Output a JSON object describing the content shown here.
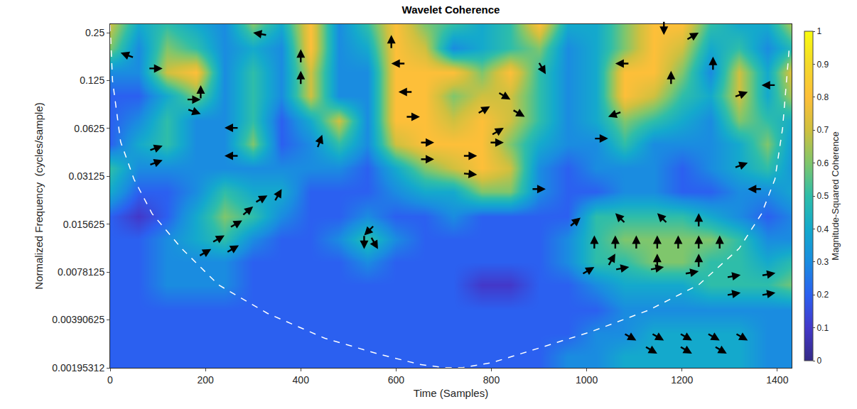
{
  "chart_data": {
    "type": "heatmap",
    "title": "Wavelet Coherence",
    "x_label": "Time (Samples)",
    "y_label": "Normalized Frequency  (cycles/sample)",
    "log": "y",
    "xlim": [
      0,
      1430
    ],
    "xticks": [
      0,
      200,
      400,
      600,
      800,
      1000,
      1200,
      1400
    ],
    "ylim": [
      0.00195312,
      0.283
    ],
    "yticks": [
      0.00195312,
      0.00390625,
      0.0078125,
      0.015625,
      0.03125,
      0.0625,
      0.125,
      0.25
    ],
    "x": [
      0,
      60,
      120,
      180,
      240,
      300,
      360,
      420,
      480,
      540,
      600,
      660,
      720,
      780,
      840,
      900,
      960,
      1020,
      1080,
      1140,
      1200,
      1260,
      1320,
      1380,
      1440
    ],
    "y": [
      0.0023,
      0.0032,
      0.0045,
      0.0065,
      0.009,
      0.0125,
      0.0175,
      0.025,
      0.035,
      0.05,
      0.07,
      0.1,
      0.14,
      0.2,
      0.28
    ],
    "z": [
      [
        0.2,
        0.2,
        0.2,
        0.2,
        0.2,
        0.2,
        0.2,
        0.2,
        0.2,
        0.2,
        0.2,
        0.2,
        0.2,
        0.2,
        0.2,
        0.2,
        0.3,
        0.3,
        0.4,
        0.4,
        0.4,
        0.4,
        0.4,
        0.3,
        0.3
      ],
      [
        0.2,
        0.2,
        0.2,
        0.2,
        0.2,
        0.2,
        0.2,
        0.2,
        0.2,
        0.2,
        0.2,
        0.2,
        0.2,
        0.2,
        0.2,
        0.2,
        0.2,
        0.3,
        0.3,
        0.4,
        0.4,
        0.4,
        0.4,
        0.3,
        0.3
      ],
      [
        0.2,
        0.2,
        0.2,
        0.2,
        0.2,
        0.2,
        0.2,
        0.2,
        0.2,
        0.2,
        0.2,
        0.2,
        0.2,
        0.2,
        0.2,
        0.2,
        0.2,
        0.2,
        0.3,
        0.3,
        0.3,
        0.3,
        0.3,
        0.3,
        0.3
      ],
      [
        0.2,
        0.2,
        0.3,
        0.3,
        0.3,
        0.2,
        0.2,
        0.2,
        0.2,
        0.2,
        0.2,
        0.2,
        0.2,
        0.1,
        0.1,
        0.2,
        0.2,
        0.3,
        0.4,
        0.4,
        0.4,
        0.5,
        0.5,
        0.5,
        0.6
      ],
      [
        0.2,
        0.2,
        0.3,
        0.3,
        0.3,
        0.2,
        0.2,
        0.2,
        0.2,
        0.3,
        0.2,
        0.2,
        0.2,
        0.2,
        0.2,
        0.2,
        0.3,
        0.5,
        0.5,
        0.6,
        0.6,
        0.5,
        0.5,
        0.4,
        0.5
      ],
      [
        0.2,
        0.2,
        0.3,
        0.4,
        0.5,
        0.3,
        0.2,
        0.2,
        0.3,
        0.5,
        0.3,
        0.2,
        0.2,
        0.2,
        0.2,
        0.2,
        0.3,
        0.5,
        0.6,
        0.6,
        0.6,
        0.6,
        0.5,
        0.3,
        0.3
      ],
      [
        0.2,
        0.1,
        0.2,
        0.4,
        0.6,
        0.5,
        0.3,
        0.2,
        0.2,
        0.3,
        0.2,
        0.2,
        0.3,
        0.2,
        0.2,
        0.2,
        0.2,
        0.5,
        0.5,
        0.5,
        0.5,
        0.4,
        0.3,
        0.2,
        0.3
      ],
      [
        0.4,
        0.2,
        0.2,
        0.3,
        0.5,
        0.4,
        0.4,
        0.2,
        0.2,
        0.2,
        0.3,
        0.4,
        0.4,
        0.6,
        0.6,
        0.3,
        0.2,
        0.2,
        0.3,
        0.3,
        0.2,
        0.2,
        0.3,
        0.3,
        0.4
      ],
      [
        0.5,
        0.3,
        0.3,
        0.3,
        0.3,
        0.3,
        0.3,
        0.3,
        0.3,
        0.2,
        0.4,
        0.6,
        0.7,
        0.8,
        0.7,
        0.3,
        0.2,
        0.3,
        0.3,
        0.3,
        0.2,
        0.3,
        0.4,
        0.5,
        0.3
      ],
      [
        0.2,
        0.4,
        0.5,
        0.3,
        0.3,
        0.6,
        0.2,
        0.3,
        0.5,
        0.3,
        0.7,
        0.8,
        0.8,
        0.8,
        0.6,
        0.4,
        0.3,
        0.3,
        0.5,
        0.3,
        0.3,
        0.3,
        0.4,
        0.6,
        0.3
      ],
      [
        0.2,
        0.3,
        0.5,
        0.3,
        0.3,
        0.5,
        0.2,
        0.4,
        0.7,
        0.3,
        0.8,
        0.8,
        0.7,
        0.8,
        0.7,
        0.5,
        0.3,
        0.4,
        0.6,
        0.5,
        0.4,
        0.3,
        0.6,
        0.5,
        0.4
      ],
      [
        0.2,
        0.2,
        0.4,
        0.6,
        0.3,
        0.5,
        0.3,
        0.7,
        0.3,
        0.3,
        0.8,
        0.8,
        0.6,
        0.7,
        0.7,
        0.5,
        0.3,
        0.4,
        0.8,
        0.7,
        0.5,
        0.4,
        0.7,
        0.4,
        0.7
      ],
      [
        0.3,
        0.3,
        0.7,
        0.8,
        0.3,
        0.5,
        0.3,
        0.7,
        0.3,
        0.3,
        0.8,
        0.8,
        0.8,
        0.6,
        0.8,
        0.5,
        0.3,
        0.4,
        0.8,
        0.8,
        0.6,
        0.3,
        0.7,
        0.4,
        0.8
      ],
      [
        0.6,
        0.3,
        0.6,
        0.5,
        0.3,
        0.4,
        0.3,
        0.8,
        0.3,
        0.4,
        0.8,
        0.7,
        0.3,
        0.4,
        0.5,
        0.6,
        0.3,
        0.4,
        0.6,
        0.8,
        0.7,
        0.4,
        0.5,
        0.3,
        0.5
      ],
      [
        0.7,
        0.4,
        0.5,
        0.4,
        0.3,
        0.6,
        0.4,
        0.8,
        0.3,
        0.5,
        0.8,
        0.6,
        0.5,
        0.4,
        0.5,
        0.8,
        0.4,
        0.4,
        0.6,
        0.8,
        0.8,
        0.5,
        0.4,
        0.4,
        0.7
      ]
    ],
    "colorbar": {
      "title": "Magnitude-Squared Coherence",
      "range": [
        0,
        1
      ],
      "ticks": [
        0,
        0.1,
        0.2,
        0.3,
        0.4,
        0.5,
        0.6,
        0.7,
        0.8,
        0.9,
        1
      ]
    },
    "arrows": {
      "x": [
        22,
        110,
        110,
        110,
        190,
        190,
        190,
        240,
        240,
        300,
        400,
        400,
        445,
        590,
        590,
        605,
        650,
        680,
        680,
        770,
        770,
        826,
        826,
        797,
        870,
        914,
        914,
        840,
        1060,
        1162,
        1177,
        1235,
        1265,
        1338,
        1367,
        1045,
        1045,
        1338,
        1338,
        212,
        240,
        277,
        300,
        330,
        360,
        270,
        533,
        533,
        562,
        987,
        1016,
        1060,
        1104,
        1148,
        1192,
        1235,
        1279,
        1060,
        1148,
        1235,
        1060,
        1148,
        1235,
        1016,
        1089,
        1162,
        1235,
        1323,
        1396,
        1323,
        1396,
        1104,
        1162,
        1221,
        1279,
        1338,
        1148,
        1221,
        1294
      ],
      "y": [
        0.187,
        0.149,
        0.0487,
        0.0395,
        0.117,
        0.095,
        0.077,
        0.063,
        0.042,
        0.25,
        0.197,
        0.144,
        0.057,
        0.242,
        0.16,
        0.106,
        0.074,
        0.051,
        0.04,
        0.042,
        0.032,
        0.051,
        0.063,
        0.086,
        0.074,
        0.026,
        0.137,
        0.095,
        0.16,
        0.242,
        0.144,
        0.25,
        0.177,
        0.106,
        0.117,
        0.074,
        0.054,
        0.038,
        0.026,
        0.0109,
        0.0133,
        0.0165,
        0.0202,
        0.0237,
        0.026,
        0.0115,
        0.0133,
        0.0109,
        0.0109,
        0.0172,
        0.0133,
        0.0133,
        0.0133,
        0.0133,
        0.0133,
        0.0133,
        0.0133,
        0.0183,
        0.0183,
        0.0183,
        0.0102,
        0.0102,
        0.0102,
        0.0084,
        0.0084,
        0.0084,
        0.0079,
        0.0075,
        0.0077,
        0.0058,
        0.0058,
        0.0029,
        0.0029,
        0.0029,
        0.0029,
        0.0029,
        0.0024,
        0.0024,
        0.0024
      ],
      "angle": [
        160,
        0,
        20,
        20,
        90,
        0,
        340,
        180,
        180,
        170,
        90,
        90,
        70,
        90,
        180,
        180,
        0,
        0,
        0,
        0,
        355,
        0,
        30,
        30,
        330,
        0,
        300,
        330,
        180,
        270,
        90,
        30,
        90,
        20,
        180,
        200,
        0,
        20,
        180,
        30,
        30,
        30,
        40,
        30,
        60,
        30,
        225,
        270,
        300,
        40,
        90,
        90,
        90,
        90,
        90,
        90,
        90,
        135,
        135,
        90,
        60,
        90,
        90,
        30,
        10,
        10,
        10,
        10,
        10,
        10,
        10,
        330,
        330,
        330,
        330,
        330,
        330,
        330,
        330
      ]
    },
    "coi": {
      "x": [
        0,
        5,
        22,
        50,
        88,
        150,
        227,
        330,
        450,
        560,
        650,
        700,
        740,
        800,
        900,
        1010,
        1130,
        1235,
        1320,
        1367,
        1395,
        1411,
        1425
      ],
      "y": [
        0.28,
        0.125,
        0.0515,
        0.03,
        0.0182,
        0.011,
        0.0065,
        0.0043,
        0.003,
        0.0024,
        0.00205,
        0.00196,
        0.00196,
        0.0021,
        0.0026,
        0.0033,
        0.0045,
        0.0065,
        0.011,
        0.0182,
        0.03,
        0.0625,
        0.2
      ]
    }
  }
}
